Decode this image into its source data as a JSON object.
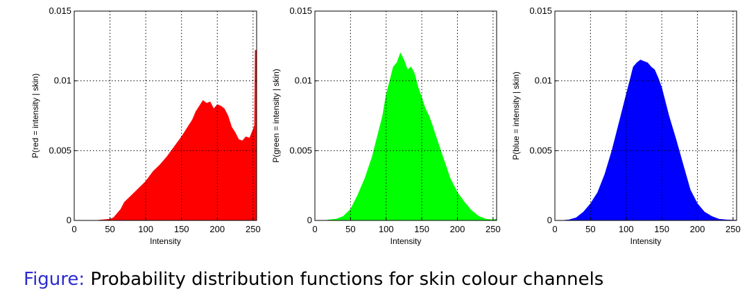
{
  "caption": {
    "label": "Figure:",
    "text": "Probability distribution functions for skin colour channels"
  },
  "chart_data": [
    {
      "type": "area",
      "channel": "red",
      "color": "#ff0000",
      "xlabel": "Intensity",
      "ylabel": "P(red = intensity | skin)",
      "xlim": [
        0,
        255
      ],
      "ylim": [
        0,
        0.015
      ],
      "xticks": [
        "0",
        "50",
        "100",
        "150",
        "200",
        "250"
      ],
      "yticks": [
        "0",
        "0.005",
        "0.01",
        "0.015"
      ],
      "grid": true,
      "x": [
        0,
        30,
        40,
        50,
        55,
        60,
        65,
        70,
        80,
        90,
        100,
        110,
        120,
        130,
        140,
        150,
        160,
        165,
        170,
        175,
        180,
        185,
        190,
        195,
        200,
        205,
        210,
        215,
        220,
        225,
        230,
        235,
        240,
        245,
        250,
        252,
        253,
        255
      ],
      "y": [
        0,
        0,
        5e-05,
        0.0001,
        0.0002,
        0.0005,
        0.0008,
        0.0013,
        0.0018,
        0.0023,
        0.0028,
        0.0035,
        0.004,
        0.0046,
        0.0053,
        0.006,
        0.0068,
        0.0072,
        0.0078,
        0.0082,
        0.0086,
        0.0084,
        0.0085,
        0.008,
        0.0083,
        0.0082,
        0.008,
        0.0075,
        0.0067,
        0.0063,
        0.0058,
        0.0057,
        0.006,
        0.0059,
        0.0065,
        0.0068,
        0.0122,
        0.0122
      ]
    },
    {
      "type": "area",
      "channel": "green",
      "color": "#00ff00",
      "xlabel": "Intensity",
      "ylabel": "P(green = intensity | skin)",
      "xlim": [
        0,
        255
      ],
      "ylim": [
        0,
        0.015
      ],
      "xticks": [
        "0",
        "50",
        "100",
        "150",
        "200",
        "250"
      ],
      "yticks": [
        "0",
        "0.005",
        "0.01",
        "0.015"
      ],
      "grid": true,
      "x": [
        0,
        15,
        20,
        30,
        40,
        50,
        60,
        70,
        80,
        90,
        95,
        100,
        105,
        110,
        115,
        120,
        125,
        130,
        135,
        140,
        145,
        150,
        155,
        160,
        165,
        170,
        180,
        190,
        200,
        210,
        220,
        230,
        240,
        250,
        255
      ],
      "y": [
        0,
        0,
        5e-05,
        0.0001,
        0.0003,
        0.0008,
        0.0018,
        0.003,
        0.0045,
        0.0065,
        0.0075,
        0.009,
        0.01,
        0.011,
        0.0113,
        0.012,
        0.0115,
        0.0108,
        0.011,
        0.0105,
        0.0095,
        0.0088,
        0.008,
        0.0075,
        0.0068,
        0.006,
        0.0045,
        0.003,
        0.002,
        0.0013,
        0.0007,
        0.0003,
        0.0001,
        5e-05,
        0.0001
      ]
    },
    {
      "type": "area",
      "channel": "blue",
      "color": "#0000ff",
      "xlabel": "Intensity",
      "ylabel": "P(blue = intensity | skin)",
      "xlim": [
        0,
        255
      ],
      "ylim": [
        0,
        0.015
      ],
      "xticks": [
        "0",
        "50",
        "100",
        "150",
        "200",
        "250"
      ],
      "yticks": [
        "0",
        "0.005",
        "0.01",
        "0.015"
      ],
      "grid": true,
      "x": [
        0,
        10,
        20,
        30,
        40,
        50,
        60,
        70,
        80,
        90,
        95,
        100,
        105,
        110,
        115,
        120,
        125,
        130,
        135,
        140,
        145,
        150,
        160,
        170,
        180,
        190,
        200,
        210,
        220,
        230,
        240,
        250,
        255
      ],
      "y": [
        0,
        0,
        5e-05,
        0.0002,
        0.0006,
        0.0012,
        0.002,
        0.0033,
        0.005,
        0.007,
        0.008,
        0.009,
        0.01,
        0.011,
        0.0113,
        0.0115,
        0.0114,
        0.0113,
        0.011,
        0.0108,
        0.0102,
        0.0095,
        0.0075,
        0.0058,
        0.004,
        0.0022,
        0.0012,
        0.0006,
        0.0003,
        0.0001,
        5e-05,
        2e-05,
        2e-05
      ]
    }
  ]
}
